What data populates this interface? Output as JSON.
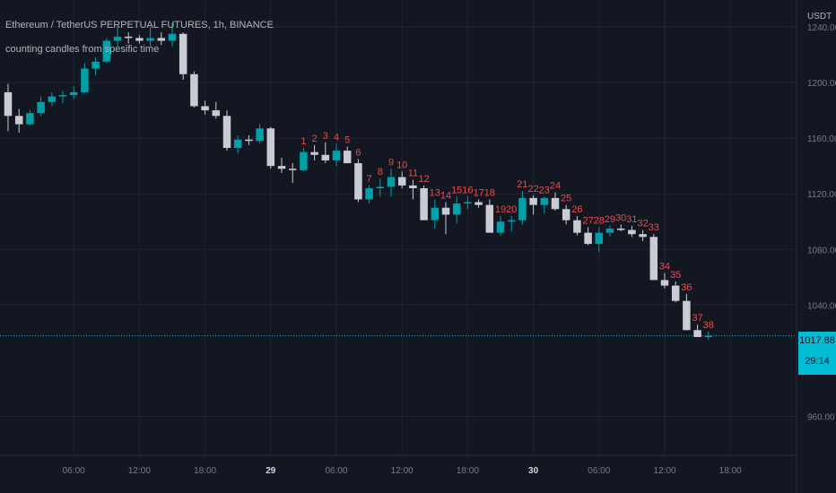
{
  "header": {
    "symbol_title": "Ethereum / TetherUS PERPETUAL FUTURES, 1h, BINANCE",
    "indicator_name": "counting candles from spesific time"
  },
  "price_axis": {
    "unit": "USDT",
    "ticks": [
      "1240.00",
      "1200.00",
      "1160.00",
      "1120.00",
      "1080.00",
      "1040.00",
      "960.00"
    ],
    "current_price": "1017.88",
    "countdown": "29:14"
  },
  "colors": {
    "background": "#131722",
    "bull": "#00a0a8",
    "bear": "#c9ccd4",
    "grid": "#1f2433",
    "count_label": "#f04a4a",
    "current_price_line": "#00bcd4"
  },
  "chart_data": {
    "type": "candlestick",
    "title": "",
    "ylim": [
      940,
      1250
    ],
    "yticks": [
      1240,
      1200,
      1160,
      1120,
      1080,
      1040,
      960
    ],
    "xticks": [
      {
        "label": "06:00",
        "bar": 6
      },
      {
        "label": "12:00",
        "bar": 12
      },
      {
        "label": "18:00",
        "bar": 18
      },
      {
        "label": "29",
        "bar": 24
      },
      {
        "label": "06:00",
        "bar": 30
      },
      {
        "label": "12:00",
        "bar": 36
      },
      {
        "label": "18:00",
        "bar": 42
      },
      {
        "label": "30",
        "bar": 48
      },
      {
        "label": "06:00",
        "bar": 54
      },
      {
        "label": "12:00",
        "bar": 60
      },
      {
        "label": "18:00",
        "bar": 66
      }
    ],
    "current_price": 1017.88,
    "count_start_bar": 27,
    "candles": [
      [
        1193,
        1199,
        1165,
        1176
      ],
      [
        1176,
        1181,
        1164,
        1170
      ],
      [
        1170,
        1180,
        1169,
        1178
      ],
      [
        1178,
        1190,
        1176,
        1186
      ],
      [
        1186,
        1193,
        1183,
        1190
      ],
      [
        1190,
        1194,
        1185,
        1191
      ],
      [
        1191,
        1197,
        1188,
        1193
      ],
      [
        1193,
        1214,
        1192,
        1210
      ],
      [
        1210,
        1218,
        1205,
        1215
      ],
      [
        1215,
        1232,
        1214,
        1230
      ],
      [
        1230,
        1240,
        1226,
        1233
      ],
      [
        1233,
        1236,
        1228,
        1232
      ],
      [
        1232,
        1234,
        1228,
        1230
      ],
      [
        1230,
        1240,
        1226,
        1232
      ],
      [
        1232,
        1236,
        1227,
        1230
      ],
      [
        1230,
        1243,
        1226,
        1235
      ],
      [
        1235,
        1236,
        1202,
        1206
      ],
      [
        1206,
        1208,
        1182,
        1183
      ],
      [
        1183,
        1187,
        1177,
        1180
      ],
      [
        1180,
        1186,
        1174,
        1176
      ],
      [
        1176,
        1180,
        1151,
        1153
      ],
      [
        1153,
        1162,
        1149,
        1159
      ],
      [
        1159,
        1162,
        1155,
        1158
      ],
      [
        1158,
        1170,
        1156,
        1167
      ],
      [
        1167,
        1168,
        1138,
        1140
      ],
      [
        1140,
        1146,
        1135,
        1138
      ],
      [
        1138,
        1142,
        1128,
        1137
      ],
      [
        1137,
        1153,
        1136,
        1150
      ],
      [
        1150,
        1155,
        1144,
        1148
      ],
      [
        1148,
        1157,
        1142,
        1144
      ],
      [
        1144,
        1156,
        1140,
        1151
      ],
      [
        1151,
        1154,
        1143,
        1142
      ],
      [
        1142,
        1145,
        1114,
        1116
      ],
      [
        1116,
        1126,
        1113,
        1124
      ],
      [
        1124,
        1131,
        1118,
        1125
      ],
      [
        1125,
        1138,
        1118,
        1132
      ],
      [
        1132,
        1136,
        1124,
        1126
      ],
      [
        1126,
        1130,
        1116,
        1124
      ],
      [
        1124,
        1126,
        1103,
        1101
      ],
      [
        1101,
        1116,
        1095,
        1110
      ],
      [
        1110,
        1114,
        1091,
        1105
      ],
      [
        1105,
        1118,
        1099,
        1113
      ],
      [
        1113,
        1118,
        1109,
        1114
      ],
      [
        1114,
        1116,
        1110,
        1112
      ],
      [
        1112,
        1116,
        1092,
        1092
      ],
      [
        1092,
        1104,
        1090,
        1100
      ],
      [
        1100,
        1104,
        1093,
        1101
      ],
      [
        1101,
        1122,
        1098,
        1117
      ],
      [
        1117,
        1119,
        1105,
        1112
      ],
      [
        1112,
        1118,
        1106,
        1117
      ],
      [
        1117,
        1121,
        1108,
        1109
      ],
      [
        1109,
        1112,
        1098,
        1101
      ],
      [
        1101,
        1104,
        1090,
        1092
      ],
      [
        1092,
        1096,
        1083,
        1084
      ],
      [
        1084,
        1096,
        1078,
        1092
      ],
      [
        1092,
        1097,
        1089,
        1095
      ],
      [
        1095,
        1098,
        1093,
        1094
      ],
      [
        1094,
        1097,
        1089,
        1091
      ],
      [
        1091,
        1094,
        1086,
        1089
      ],
      [
        1089,
        1091,
        1060,
        1058
      ],
      [
        1058,
        1063,
        1052,
        1054
      ],
      [
        1054,
        1057,
        1042,
        1043
      ],
      [
        1043,
        1048,
        1022,
        1022
      ],
      [
        1022,
        1026,
        1017,
        1017
      ],
      [
        1017,
        1021,
        1015,
        1018
      ]
    ]
  }
}
